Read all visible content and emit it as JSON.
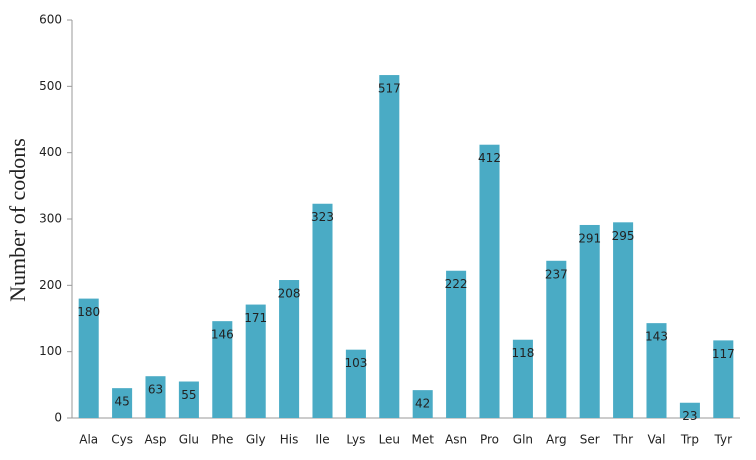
{
  "chart_data": {
    "type": "bar",
    "y_label": "Number of codons",
    "categories": [
      "Ala",
      "Cys",
      "Asp",
      "Glu",
      "Phe",
      "Gly",
      "His",
      "Ile",
      "Lys",
      "Leu",
      "Met",
      "Asn",
      "Pro",
      "Gln",
      "Arg",
      "Ser",
      "Thr",
      "Val",
      "Trp",
      "Tyr"
    ],
    "values": [
      180,
      45,
      63,
      55,
      146,
      171,
      208,
      323,
      103,
      517,
      42,
      222,
      412,
      118,
      237,
      291,
      295,
      143,
      23,
      117
    ],
    "color": "#4aabc5",
    "ylim": [
      0,
      600
    ],
    "yticks": [
      0,
      100,
      200,
      300,
      400,
      500,
      600
    ],
    "grid": false
  }
}
